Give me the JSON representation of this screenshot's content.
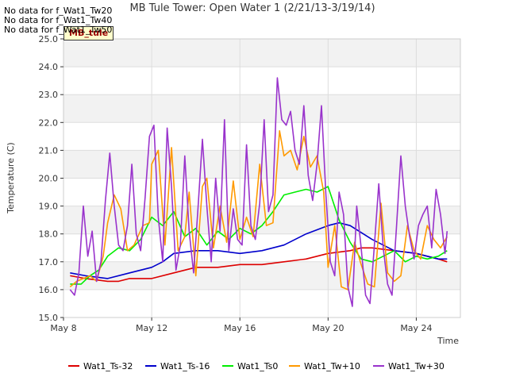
{
  "chart_data": {
    "type": "line",
    "title": "MB Tule Tower: Open Water 1 (2/21/13-3/19/14)",
    "xlabel": "Time",
    "ylabel": "Temperature (C)",
    "xlim_days": [
      0,
      18
    ],
    "x_ticks": [
      {
        "day": 0,
        "label": "May 8"
      },
      {
        "day": 4,
        "label": "May 12"
      },
      {
        "day": 8,
        "label": "May 16"
      },
      {
        "day": 12,
        "label": "May 20"
      },
      {
        "day": 16,
        "label": "May 24"
      }
    ],
    "ylim": [
      15.0,
      25.0
    ],
    "y_ticks": [
      15.0,
      16.0,
      17.0,
      18.0,
      19.0,
      20.0,
      21.0,
      22.0,
      23.0,
      24.0,
      25.0
    ],
    "no_data_messages": [
      "No data for f_Wat1_Tw20",
      "No data for f_Wat1_Tw40",
      "No data for f_Wat1_Tw50"
    ],
    "site_tag": "MB_tule",
    "series": [
      {
        "name": "Wat1_Ts-32",
        "color": "#dd0000",
        "x": [
          0.3,
          1,
          2,
          2.5,
          3,
          4,
          5,
          5.5,
          6,
          7,
          8,
          9,
          10,
          11,
          12,
          13,
          13.5,
          14,
          15,
          16,
          16.5,
          17,
          17.4
        ],
        "y": [
          16.5,
          16.4,
          16.3,
          16.3,
          16.4,
          16.4,
          16.6,
          16.7,
          16.8,
          16.8,
          16.9,
          16.9,
          17.0,
          17.1,
          17.3,
          17.4,
          17.5,
          17.5,
          17.4,
          17.3,
          17.2,
          17.1,
          17.0
        ]
      },
      {
        "name": "Wat1_Ts-16",
        "color": "#0000cc",
        "x": [
          0.3,
          1,
          2,
          3,
          4,
          4.5,
          5,
          6,
          7,
          8,
          9,
          10,
          11,
          12,
          12.5,
          13,
          14,
          15,
          16,
          17,
          17.4
        ],
        "y": [
          16.6,
          16.5,
          16.4,
          16.6,
          16.8,
          17.0,
          17.3,
          17.4,
          17.4,
          17.3,
          17.4,
          17.6,
          18.0,
          18.3,
          18.4,
          18.3,
          17.8,
          17.4,
          17.3,
          17.1,
          17.1
        ]
      },
      {
        "name": "Wat1_Ts0",
        "color": "#00ee00",
        "x": [
          0.3,
          0.8,
          1.2,
          1.6,
          2,
          2.5,
          3,
          3.5,
          4,
          4.5,
          5,
          5.5,
          6,
          6.5,
          7,
          7.5,
          8,
          8.5,
          9,
          9.5,
          10,
          10.5,
          11,
          11.5,
          12,
          12.5,
          13,
          13.5,
          14,
          14.5,
          15,
          15.5,
          16,
          16.5,
          17,
          17.4
        ],
        "y": [
          16.2,
          16.2,
          16.5,
          16.7,
          17.2,
          17.5,
          17.4,
          17.8,
          18.6,
          18.3,
          18.8,
          17.9,
          18.2,
          17.6,
          18.1,
          17.8,
          18.2,
          18.0,
          18.3,
          18.8,
          19.4,
          19.5,
          19.6,
          19.5,
          19.7,
          18.5,
          17.7,
          17.1,
          17.0,
          17.2,
          17.4,
          17.0,
          17.2,
          17.1,
          17.2,
          17.4
        ]
      },
      {
        "name": "Wat1_Tw+10",
        "color": "#ff9900",
        "x": [
          0.3,
          0.6,
          0.9,
          1.2,
          1.5,
          1.8,
          2.0,
          2.3,
          2.6,
          2.9,
          3.2,
          3.6,
          3.9,
          4.0,
          4.3,
          4.6,
          4.9,
          5.2,
          5.5,
          5.7,
          6.0,
          6.3,
          6.5,
          6.8,
          7.1,
          7.4,
          7.7,
          8.0,
          8.3,
          8.6,
          8.9,
          9.2,
          9.5,
          9.8,
          10.0,
          10.3,
          10.6,
          10.9,
          11.2,
          11.5,
          11.8,
          12.0,
          12.3,
          12.6,
          12.9,
          13.2,
          13.5,
          13.8,
          14.1,
          14.4,
          14.7,
          15.0,
          15.3,
          15.6,
          15.9,
          16.2,
          16.5,
          16.8,
          17.1,
          17.4
        ],
        "y": [
          16.1,
          16.3,
          16.4,
          16.5,
          16.3,
          17.2,
          18.4,
          19.4,
          18.9,
          17.4,
          17.6,
          18.3,
          18.4,
          20.5,
          21.0,
          17.6,
          21.1,
          17.4,
          17.9,
          19.5,
          16.5,
          19.7,
          20.0,
          17.5,
          19.0,
          17.7,
          19.9,
          17.8,
          18.6,
          17.9,
          20.5,
          18.3,
          18.4,
          21.7,
          20.8,
          21.0,
          20.3,
          21.5,
          20.4,
          20.8,
          19.5,
          16.8,
          18.3,
          16.1,
          16.0,
          17.7,
          16.9,
          16.2,
          16.1,
          19.1,
          16.6,
          16.3,
          16.5,
          18.3,
          17.4,
          17.1,
          18.3,
          17.8,
          17.5,
          17.9
        ]
      },
      {
        "name": "Wat1_Tw+30",
        "color": "#9933cc",
        "x": [
          0.3,
          0.5,
          0.7,
          0.9,
          1.1,
          1.3,
          1.5,
          1.7,
          1.9,
          2.1,
          2.3,
          2.5,
          2.7,
          2.9,
          3.1,
          3.3,
          3.5,
          3.7,
          3.9,
          4.1,
          4.3,
          4.5,
          4.7,
          4.9,
          5.1,
          5.3,
          5.5,
          5.7,
          5.9,
          6.1,
          6.3,
          6.5,
          6.7,
          6.9,
          7.1,
          7.3,
          7.5,
          7.7,
          7.9,
          8.1,
          8.3,
          8.5,
          8.7,
          8.9,
          9.1,
          9.3,
          9.5,
          9.7,
          9.9,
          10.1,
          10.3,
          10.5,
          10.7,
          10.9,
          11.1,
          11.3,
          11.5,
          11.7,
          11.9,
          12.1,
          12.3,
          12.5,
          12.7,
          12.9,
          13.1,
          13.3,
          13.5,
          13.7,
          13.9,
          14.1,
          14.3,
          14.5,
          14.7,
          14.9,
          15.1,
          15.3,
          15.5,
          15.7,
          15.9,
          16.1,
          16.3,
          16.5,
          16.7,
          16.9,
          17.1,
          17.3,
          17.4
        ],
        "y": [
          16.0,
          15.8,
          16.6,
          19.0,
          17.2,
          18.1,
          16.3,
          17.0,
          19.2,
          20.9,
          19.0,
          17.6,
          17.4,
          18.3,
          20.5,
          18.0,
          17.4,
          19.3,
          21.5,
          21.9,
          18.6,
          17.0,
          21.8,
          19.7,
          16.7,
          17.6,
          20.8,
          18.1,
          16.6,
          18.9,
          21.4,
          19.0,
          17.0,
          20.0,
          18.1,
          22.1,
          17.4,
          18.9,
          17.8,
          17.6,
          21.2,
          18.3,
          17.8,
          19.1,
          22.1,
          18.8,
          19.4,
          23.6,
          22.1,
          21.9,
          22.4,
          21.0,
          20.5,
          22.6,
          20.1,
          19.2,
          20.5,
          22.6,
          19.4,
          17.0,
          16.5,
          19.5,
          18.7,
          16.1,
          15.4,
          19.0,
          17.5,
          15.8,
          15.5,
          17.6,
          19.8,
          17.5,
          16.2,
          15.8,
          18.2,
          20.8,
          19.0,
          17.9,
          17.1,
          18.3,
          18.7,
          19.0,
          17.5,
          19.6,
          18.7,
          17.3,
          18.1
        ]
      }
    ]
  }
}
